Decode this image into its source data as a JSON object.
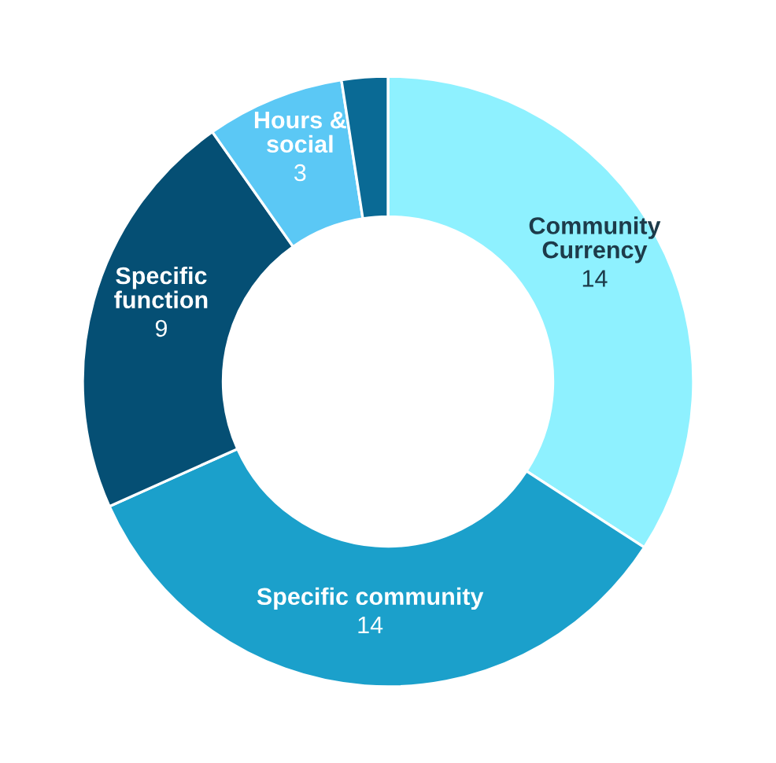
{
  "chart_data": {
    "type": "donut",
    "categories": [
      "Community\nCurrency",
      "Specific community",
      "Specific\nfunction",
      "Hours &\nsocial",
      null
    ],
    "values": [
      14,
      14,
      9,
      3,
      1
    ],
    "value_labels": [
      "14",
      "14",
      "9",
      "3",
      null
    ],
    "colors": [
      "#8ef1ff",
      "#1ba0cb",
      "#054f74",
      "#5bc8f5",
      "#0a6a95"
    ],
    "legend": false
  }
}
